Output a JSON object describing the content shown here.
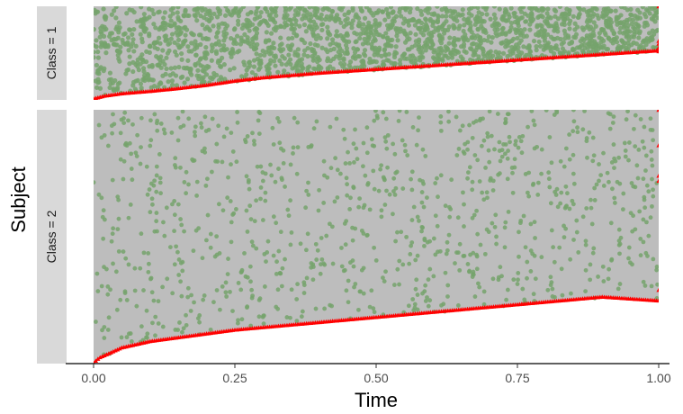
{
  "chart_data": {
    "type": "scatter",
    "title": "",
    "xlabel": "Time",
    "ylabel": "Subject",
    "xlim": [
      0,
      1
    ],
    "x_ticks": [
      0.0,
      0.25,
      0.5,
      0.75,
      1.0
    ],
    "x_tick_labels": [
      "0.00",
      "0.25",
      "0.50",
      "0.75",
      "1.00"
    ],
    "legend": "none",
    "grid": false,
    "facets": [
      {
        "label": "Class = 1",
        "subjects": 2000,
        "event_points": 2000,
        "boundary_curve": [
          [
            0.0,
            0.005
          ],
          [
            0.02,
            0.035
          ],
          [
            0.05,
            0.06
          ],
          [
            0.1,
            0.085
          ],
          [
            0.15,
            0.115
          ],
          [
            0.2,
            0.15
          ],
          [
            0.25,
            0.195
          ],
          [
            0.3,
            0.23
          ],
          [
            0.4,
            0.28
          ],
          [
            0.5,
            0.32
          ],
          [
            0.6,
            0.36
          ],
          [
            0.7,
            0.4
          ],
          [
            0.8,
            0.44
          ],
          [
            0.9,
            0.48
          ],
          [
            1.0,
            0.52
          ]
        ],
        "censored_at_end": [
          0.52,
          0.54,
          0.55,
          0.56,
          0.6,
          0.63,
          1.0
        ]
      },
      {
        "label": "Class = 2",
        "subjects": 1000,
        "event_points": 1000,
        "boundary_curve": [
          [
            0.0,
            0.0
          ],
          [
            0.01,
            0.02
          ],
          [
            0.02,
            0.03
          ],
          [
            0.05,
            0.06
          ],
          [
            0.1,
            0.085
          ],
          [
            0.15,
            0.1
          ],
          [
            0.2,
            0.115
          ],
          [
            0.25,
            0.13
          ],
          [
            0.3,
            0.14
          ],
          [
            0.4,
            0.16
          ],
          [
            0.5,
            0.18
          ],
          [
            0.6,
            0.2
          ],
          [
            0.7,
            0.22
          ],
          [
            0.8,
            0.24
          ],
          [
            0.9,
            0.26
          ],
          [
            1.0,
            0.245
          ]
        ],
        "censored_at_end": [
          0.29,
          0.72,
          0.74,
          0.86,
          1.0
        ]
      }
    ]
  },
  "colors": {
    "panel_background": "#bdbdbd",
    "event_points": "#76a36c",
    "censored_triangles": "#ff0000",
    "strip_background": "#d9d9d9",
    "axis_line": "#000000"
  }
}
